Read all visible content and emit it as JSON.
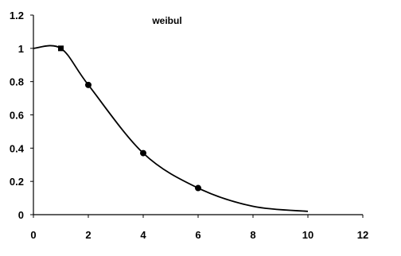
{
  "chart_data": {
    "type": "line",
    "title": "weibul",
    "xlabel": "",
    "ylabel": "",
    "xlim": [
      0,
      12
    ],
    "ylim": [
      0,
      1.2
    ],
    "x_ticks": [
      0,
      2,
      4,
      6,
      8,
      10,
      12
    ],
    "x_tick_labels": [
      "0",
      "2",
      "4",
      "6",
      "8",
      "10",
      "12"
    ],
    "y_ticks": [
      0,
      0.2,
      0.4,
      0.6,
      0.8,
      1,
      1.2
    ],
    "y_tick_labels": [
      "0",
      "0.2",
      "0.4",
      "0.6",
      "0.8",
      "1",
      "1.2"
    ],
    "grid": false,
    "legend": "none",
    "series": [
      {
        "line_color": "#000000",
        "x": [
          0,
          1,
          2,
          4,
          6,
          8,
          10
        ],
        "y": [
          1.0,
          1.0,
          0.78,
          0.37,
          0.16,
          0.05,
          0.02
        ],
        "markers": [
          {
            "x": 1,
            "y": 1.0,
            "shape": "square"
          },
          {
            "x": 2,
            "y": 0.78,
            "shape": "circle"
          },
          {
            "x": 4,
            "y": 0.37,
            "shape": "circle"
          },
          {
            "x": 6,
            "y": 0.16,
            "shape": "circle"
          }
        ]
      }
    ]
  }
}
